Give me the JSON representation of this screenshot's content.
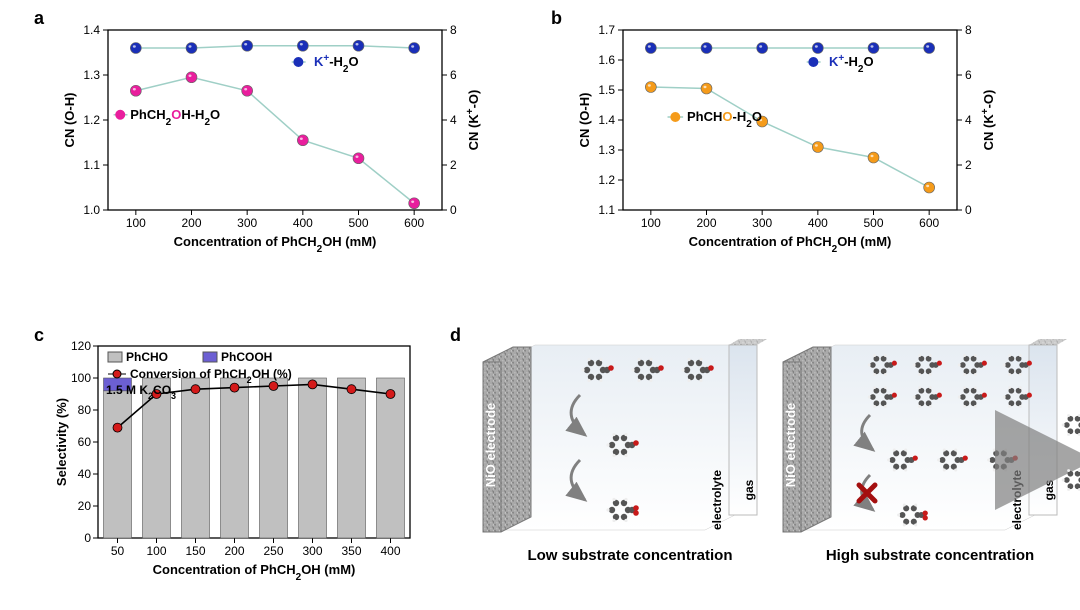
{
  "panels": {
    "a": "a",
    "b": "b",
    "c": "c",
    "d": "d"
  },
  "chartA": {
    "type": "line-dual-axis",
    "x_values": [
      100,
      200,
      300,
      400,
      500,
      600
    ],
    "series1": {
      "label_parts": [
        "PhCH",
        "2",
        "O",
        "H-H",
        "2",
        "O"
      ],
      "y": [
        1.265,
        1.295,
        1.265,
        1.155,
        1.115,
        1.015
      ],
      "marker_fill": "#e91e9d",
      "marker_stroke": "#888",
      "line_color": "#9fcfc6"
    },
    "series2": {
      "label_parts": [
        "K",
        "+",
        "-H",
        "2",
        "O"
      ],
      "y": [
        7.2,
        7.2,
        7.3,
        7.3,
        7.3,
        7.2
      ],
      "marker_fill": "#1a2fb8",
      "marker_stroke": "#888",
      "line_color": "#9fcfc6"
    },
    "xlabel_parts": [
      "Concentration of PhCH",
      "2",
      "OH (mM)"
    ],
    "ylabel1": "CN (O-H)",
    "ylabel2_parts": [
      "CN (K",
      "+",
      "-O)"
    ],
    "ylim1": [
      1.0,
      1.4
    ],
    "y1_ticks": [
      1.0,
      1.1,
      1.2,
      1.3,
      1.4
    ],
    "ylim2": [
      0,
      8
    ],
    "y2_ticks": [
      0,
      2,
      4,
      6,
      8
    ],
    "xlim": [
      50,
      650
    ],
    "x_ticks": [
      100,
      200,
      300,
      400,
      500,
      600
    ],
    "bg": "#ffffff",
    "axis_color": "#000"
  },
  "chartB": {
    "type": "line-dual-axis",
    "x_values": [
      100,
      200,
      300,
      400,
      500,
      600
    ],
    "series1": {
      "label_parts": [
        "PhCH",
        "O",
        "-H",
        "2",
        "O"
      ],
      "y": [
        1.51,
        1.505,
        1.395,
        1.31,
        1.275,
        1.175
      ],
      "marker_fill": "#f59b1a",
      "marker_stroke": "#888",
      "line_color": "#9fcfc6"
    },
    "series2": {
      "label_parts": [
        "K",
        "+",
        "-H",
        "2",
        "O"
      ],
      "y": [
        7.2,
        7.2,
        7.2,
        7.2,
        7.2,
        7.2
      ],
      "marker_fill": "#1a2fb8",
      "marker_stroke": "#888",
      "line_color": "#9fcfc6"
    },
    "xlabel_parts": [
      "Concentration of PhCH",
      "2",
      "OH (mM)"
    ],
    "ylabel1": "CN (O-H)",
    "ylabel2_parts": [
      "CN (K",
      "+",
      "-O)"
    ],
    "ylim1": [
      1.1,
      1.7
    ],
    "y1_ticks": [
      1.1,
      1.2,
      1.3,
      1.4,
      1.5,
      1.6,
      1.7
    ],
    "ylim2": [
      0,
      8
    ],
    "y2_ticks": [
      0,
      2,
      4,
      6,
      8
    ],
    "xlim": [
      50,
      650
    ],
    "x_ticks": [
      100,
      200,
      300,
      400,
      500,
      600
    ],
    "bg": "#ffffff",
    "axis_color": "#000"
  },
  "chartC": {
    "type": "bar-line",
    "x_values": [
      50,
      100,
      150,
      200,
      250,
      300,
      350,
      400
    ],
    "bar1": {
      "label": "PhCHO",
      "y": [
        92,
        100,
        100,
        100,
        100,
        100,
        100,
        100
      ],
      "color": "#c0c0c0"
    },
    "bar1_top": {
      "label": "PhCOOH",
      "y": [
        8,
        0,
        0,
        0,
        0,
        0,
        0,
        0
      ],
      "color": "#6c5fd3"
    },
    "line": {
      "label_parts": [
        "Conversion of PhCH",
        "2",
        "OH (%)"
      ],
      "y": [
        69,
        90,
        93,
        94,
        95,
        96,
        93,
        90
      ],
      "marker_fill": "#d41a1a",
      "line_color": "#000"
    },
    "annot": {
      "text_parts": [
        "1.5 M K",
        "2",
        "CO",
        "3"
      ],
      "color": "#4746c6"
    },
    "xlabel_parts": [
      "Concentration of PhCH",
      "2",
      "OH (mM)"
    ],
    "ylabel": "Selectivity (%)",
    "ylim": [
      0,
      120
    ],
    "y_ticks": [
      0,
      20,
      40,
      60,
      80,
      100,
      120
    ],
    "xlim": [
      25,
      425
    ],
    "bg": "#ffffff",
    "axis_color": "#000"
  },
  "panelD": {
    "left_caption": "Low substrate concentration",
    "right_caption": "High substrate concentration",
    "electrode_label": "NiO electrode",
    "gas_label": "gas",
    "electrolyte_label": "electrolyte",
    "electrode_fill": "#9a9a9a",
    "bg_top": "#e8eef4",
    "bg_bottom": "#ffffff",
    "gas_bg_top": "#dbe4ee",
    "gas_bg_bottom": "#fff",
    "atom_colors": {
      "C": "#555",
      "H": "#eee",
      "O": "#c81a1a"
    },
    "arrow_color": "#808080",
    "x_color": "#a40f0f"
  },
  "colors": {
    "black": "#000",
    "white": "#fff"
  }
}
